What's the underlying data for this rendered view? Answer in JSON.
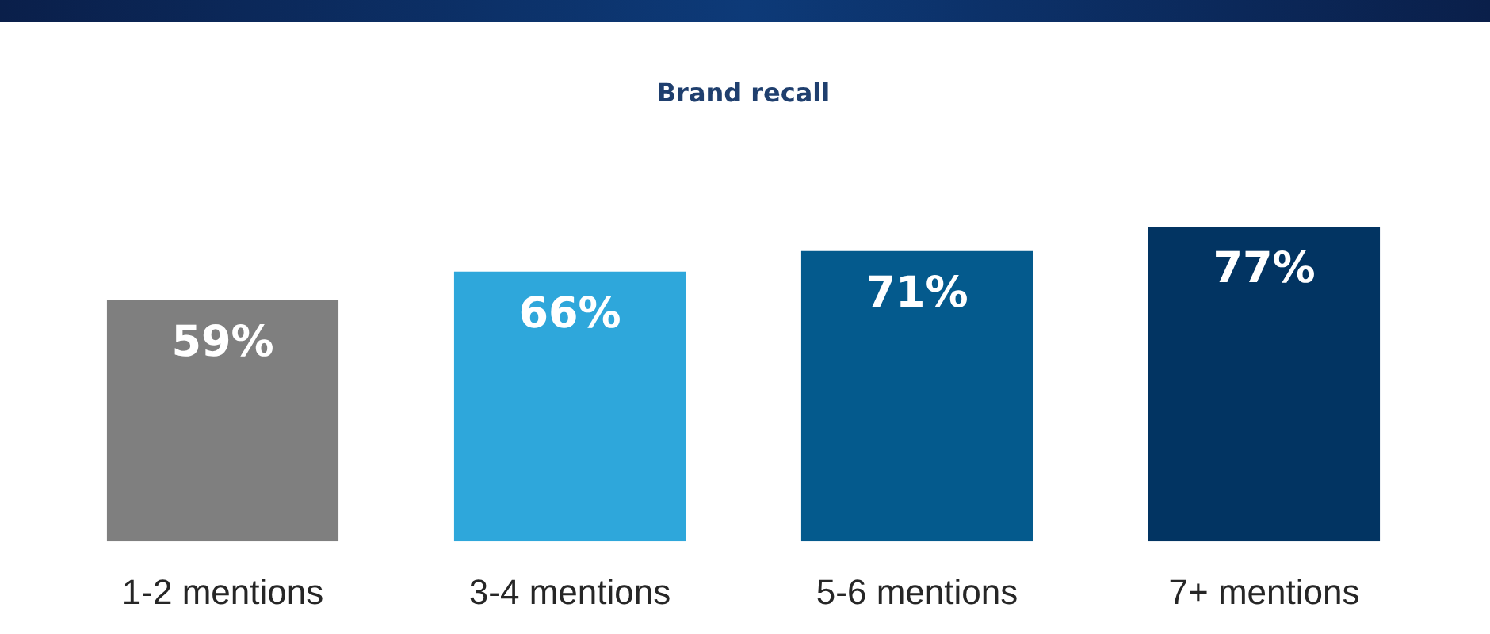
{
  "chart_data": {
    "type": "bar",
    "title": "Brand recall",
    "categories": [
      "1-2 mentions",
      "3-4 mentions",
      "5-6 mentions",
      "7+ mentions"
    ],
    "values": [
      59,
      66,
      71,
      77
    ],
    "colors": [
      "#7f7f7f",
      "#2ea7db",
      "#045a8d",
      "#023462"
    ],
    "value_labels": [
      "59%",
      "66%",
      "71%",
      "77%"
    ],
    "grid": false,
    "legend": false,
    "tick_labels": "x"
  }
}
